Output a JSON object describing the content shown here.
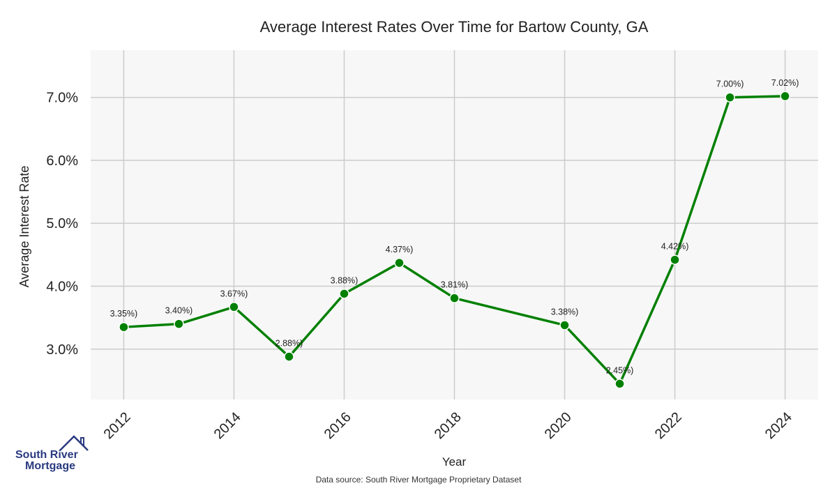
{
  "chart_data": {
    "type": "line",
    "title": "Average Interest Rates Over Time for Bartow County, GA",
    "xlabel": "Year",
    "ylabel": "Average Interest Rate",
    "x": [
      2012,
      2013,
      2014,
      2015,
      2016,
      2017,
      2018,
      2020,
      2021,
      2022,
      2023,
      2024
    ],
    "values": [
      3.35,
      3.4,
      3.67,
      2.88,
      3.88,
      4.37,
      3.81,
      3.38,
      2.45,
      4.42,
      7.0,
      7.02
    ],
    "data_labels": [
      "3.35%)",
      "3.40%)",
      "3.67%)",
      "2.88%)",
      "3.88%)",
      "4.37%)",
      "3.81%)",
      "3.38%)",
      "2.45%)",
      "4.42%)",
      "7.00%)",
      "7.02%)"
    ],
    "x_ticks": [
      2012,
      2014,
      2016,
      2018,
      2020,
      2022,
      2024
    ],
    "x_tick_labels": [
      "2012",
      "2014",
      "2016",
      "2018",
      "2020",
      "2022",
      "2024"
    ],
    "y_ticks": [
      3.0,
      4.0,
      5.0,
      6.0,
      7.0
    ],
    "y_tick_labels": [
      "3.0%",
      "4.0%",
      "5.0%",
      "6.0%",
      "7.0%"
    ],
    "xlim": [
      2011.4,
      2024.6
    ],
    "ylim": [
      2.2,
      7.75
    ],
    "grid": true,
    "line_color": "#008000",
    "background_color": "#f7f7f7",
    "grid_color": "#cccccc"
  },
  "footer": {
    "source": "Data source: South River Mortgage Proprietary Dataset",
    "logo_line1": "South River",
    "logo_line2": "Mortgage",
    "logo_color": "#2a3a80"
  }
}
